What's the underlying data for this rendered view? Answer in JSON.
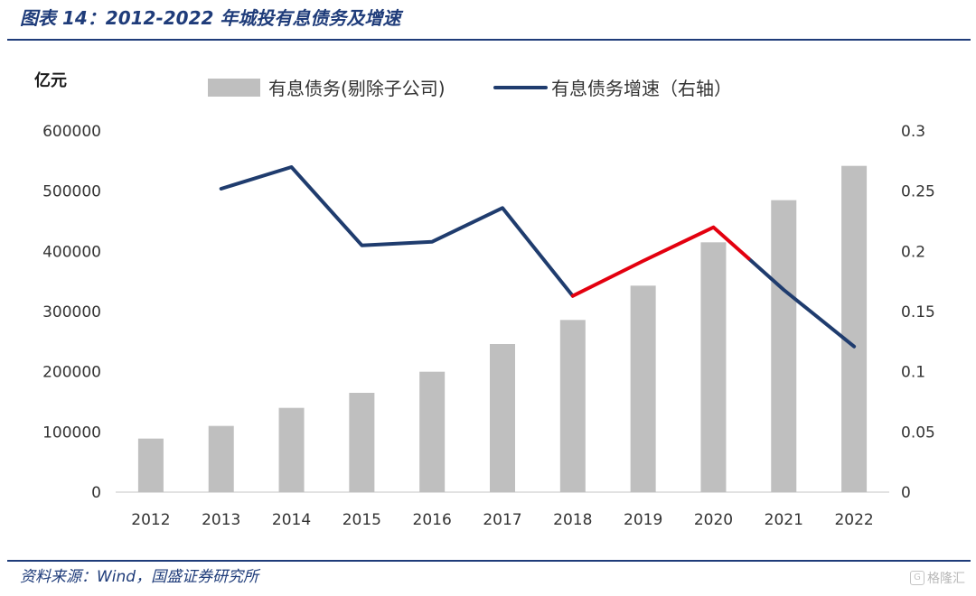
{
  "header": {
    "title": "图表 14：2012-2022 年城投有息债务及增速"
  },
  "footer": {
    "source": "资料来源：Wind，国盛证券研究所",
    "watermark": "格隆汇",
    "watermark_mark": "G"
  },
  "chart_data": {
    "type": "bar",
    "title": "",
    "categories": [
      "2012",
      "2013",
      "2014",
      "2015",
      "2016",
      "2017",
      "2018",
      "2019",
      "2020",
      "2021",
      "2022"
    ],
    "y_unit_label": "亿元",
    "ylim": [
      0,
      600000
    ],
    "y_ticks": [
      "0",
      "100000",
      "200000",
      "300000",
      "400000",
      "500000",
      "600000"
    ],
    "y2lim": [
      0,
      0.3
    ],
    "y2_ticks": [
      "0",
      "0.05",
      "0.1",
      "0.15",
      "0.2",
      "0.25",
      "0.3"
    ],
    "grid": false,
    "legend_position": "top-center",
    "series": [
      {
        "name": "有息债务(剔除子公司)",
        "type": "bar",
        "axis": "left",
        "color": "#bfbfbf",
        "values": [
          89000,
          110000,
          140000,
          165000,
          200000,
          246000,
          286000,
          343000,
          415000,
          485000,
          542000
        ]
      },
      {
        "name": "有息债务增速（右轴）",
        "type": "line",
        "axis": "right",
        "color": "#1f3c6e",
        "highlight_color": "#e3000f",
        "highlight_range": [
          "2018",
          "2020.5"
        ],
        "values": [
          null,
          0.252,
          0.27,
          0.205,
          0.208,
          0.236,
          0.163,
          0.192,
          0.22,
          0.168,
          0.121
        ]
      }
    ]
  }
}
